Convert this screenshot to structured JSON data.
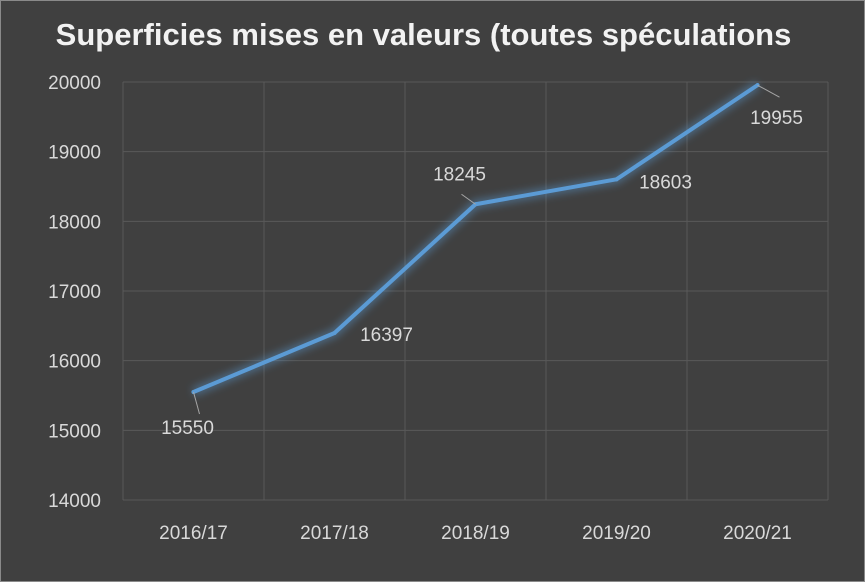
{
  "chart_data": {
    "type": "line",
    "title": "Superficies mises en valeurs (toutes spéculations",
    "xlabel": "",
    "ylabel": "",
    "categories": [
      "2016/17",
      "2017/18",
      "2018/19",
      "2019/20",
      "2020/21"
    ],
    "series": [
      {
        "values": [
          15550,
          16397,
          18245,
          18603,
          19955
        ],
        "color": "#5b9bd5"
      }
    ],
    "ylim": [
      14000,
      20000
    ],
    "yticks": [
      14000,
      15000,
      16000,
      17000,
      18000,
      19000,
      20000
    ],
    "data_labels": [
      "15550",
      "16397",
      "18245",
      "18603",
      "19955"
    ],
    "grid": true,
    "legend": "none",
    "background_color": "#404040",
    "gridline_color": "#595959",
    "text_color": "#d9d9d9"
  }
}
